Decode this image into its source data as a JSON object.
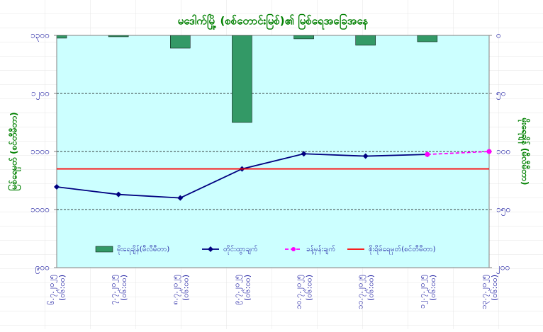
{
  "chart_data": {
    "type": "combo",
    "title": "မဒေါက်မြို့ (စစ်တောင်းမြစ်)၏ မြစ်ရေအခြေအနေ",
    "y_label": "မြစ်ရေမှတ် (စင်တီမီတာ)",
    "y2_label": "မိုးရေချိန် (မီလီမီတာ)",
    "categories": [
      [
        "၆.၇.၂၀၂၅",
        "(၀၆:၀၀)"
      ],
      [
        "၇.၇.၂၀၂၅",
        "(၀၆:၀၀)"
      ],
      [
        "၈.၇.၂၀၂၅",
        "(၀၆:၀၀)"
      ],
      [
        "၉.၇.၂၀၂၅",
        "(၀၆:၀၀)"
      ],
      [
        "၁၀.၇.၂၀၂၅",
        "(၀၆:၀၀)"
      ],
      [
        "၁၁.၇.၂၀၂၅",
        "(၀၆:၀၀)"
      ],
      [
        "၁၂.၇.၂၀၂၅",
        "(၀၆:၀၀)"
      ],
      [
        "၁၃.၇.၂၀၂၅",
        "(၀၆:၀၀)"
      ]
    ],
    "series": [
      {
        "name": "မိုးရေချိန်(မီလီမီတာ)",
        "type": "bar",
        "axis": "y2",
        "color": "#339966",
        "values": [
          2.4,
          1.2,
          11,
          75,
          3,
          8.5,
          5.5,
          null
        ]
      },
      {
        "name": "တိုင်းထွာချက်",
        "type": "line",
        "color": "#000080",
        "marker": "diamond",
        "values": [
          1039,
          1026,
          1020,
          1070,
          1096,
          1092,
          1095,
          null
        ]
      },
      {
        "name": "ခန့်မှန်းချက်",
        "type": "line",
        "color": "#ff00ff",
        "marker": "circle",
        "dashed": true,
        "values": [
          null,
          null,
          null,
          null,
          null,
          null,
          1095,
          1100
        ]
      },
      {
        "name": "စိုးရိမ်ရေမှတ်(စင်တီမီတာ)",
        "type": "line",
        "color": "#ff0000",
        "values": [
          1070,
          1070,
          1070,
          1070,
          1070,
          1070,
          1070,
          1070
        ]
      }
    ],
    "ylim": [
      900,
      1300
    ],
    "yticks": [
      {
        "value": 900,
        "label": "၉၀၀"
      },
      {
        "value": 1000,
        "label": "၁၀၀၀"
      },
      {
        "value": 1100,
        "label": "၁၁၀၀"
      },
      {
        "value": 1200,
        "label": "၁၂၀၀"
      },
      {
        "value": 1300,
        "label": "၁၃၀၀"
      }
    ],
    "y2lim": [
      0,
      200
    ],
    "y2_inverted": true,
    "y2ticks": [
      {
        "value": 0,
        "label": "၀"
      },
      {
        "value": 50,
        "label": "၅၀"
      },
      {
        "value": 100,
        "label": "၁၀၀"
      },
      {
        "value": 150,
        "label": "၁၅၀"
      },
      {
        "value": 200,
        "label": "၂၀၀"
      }
    ],
    "grid": true,
    "plot_background": "#ccffff"
  }
}
